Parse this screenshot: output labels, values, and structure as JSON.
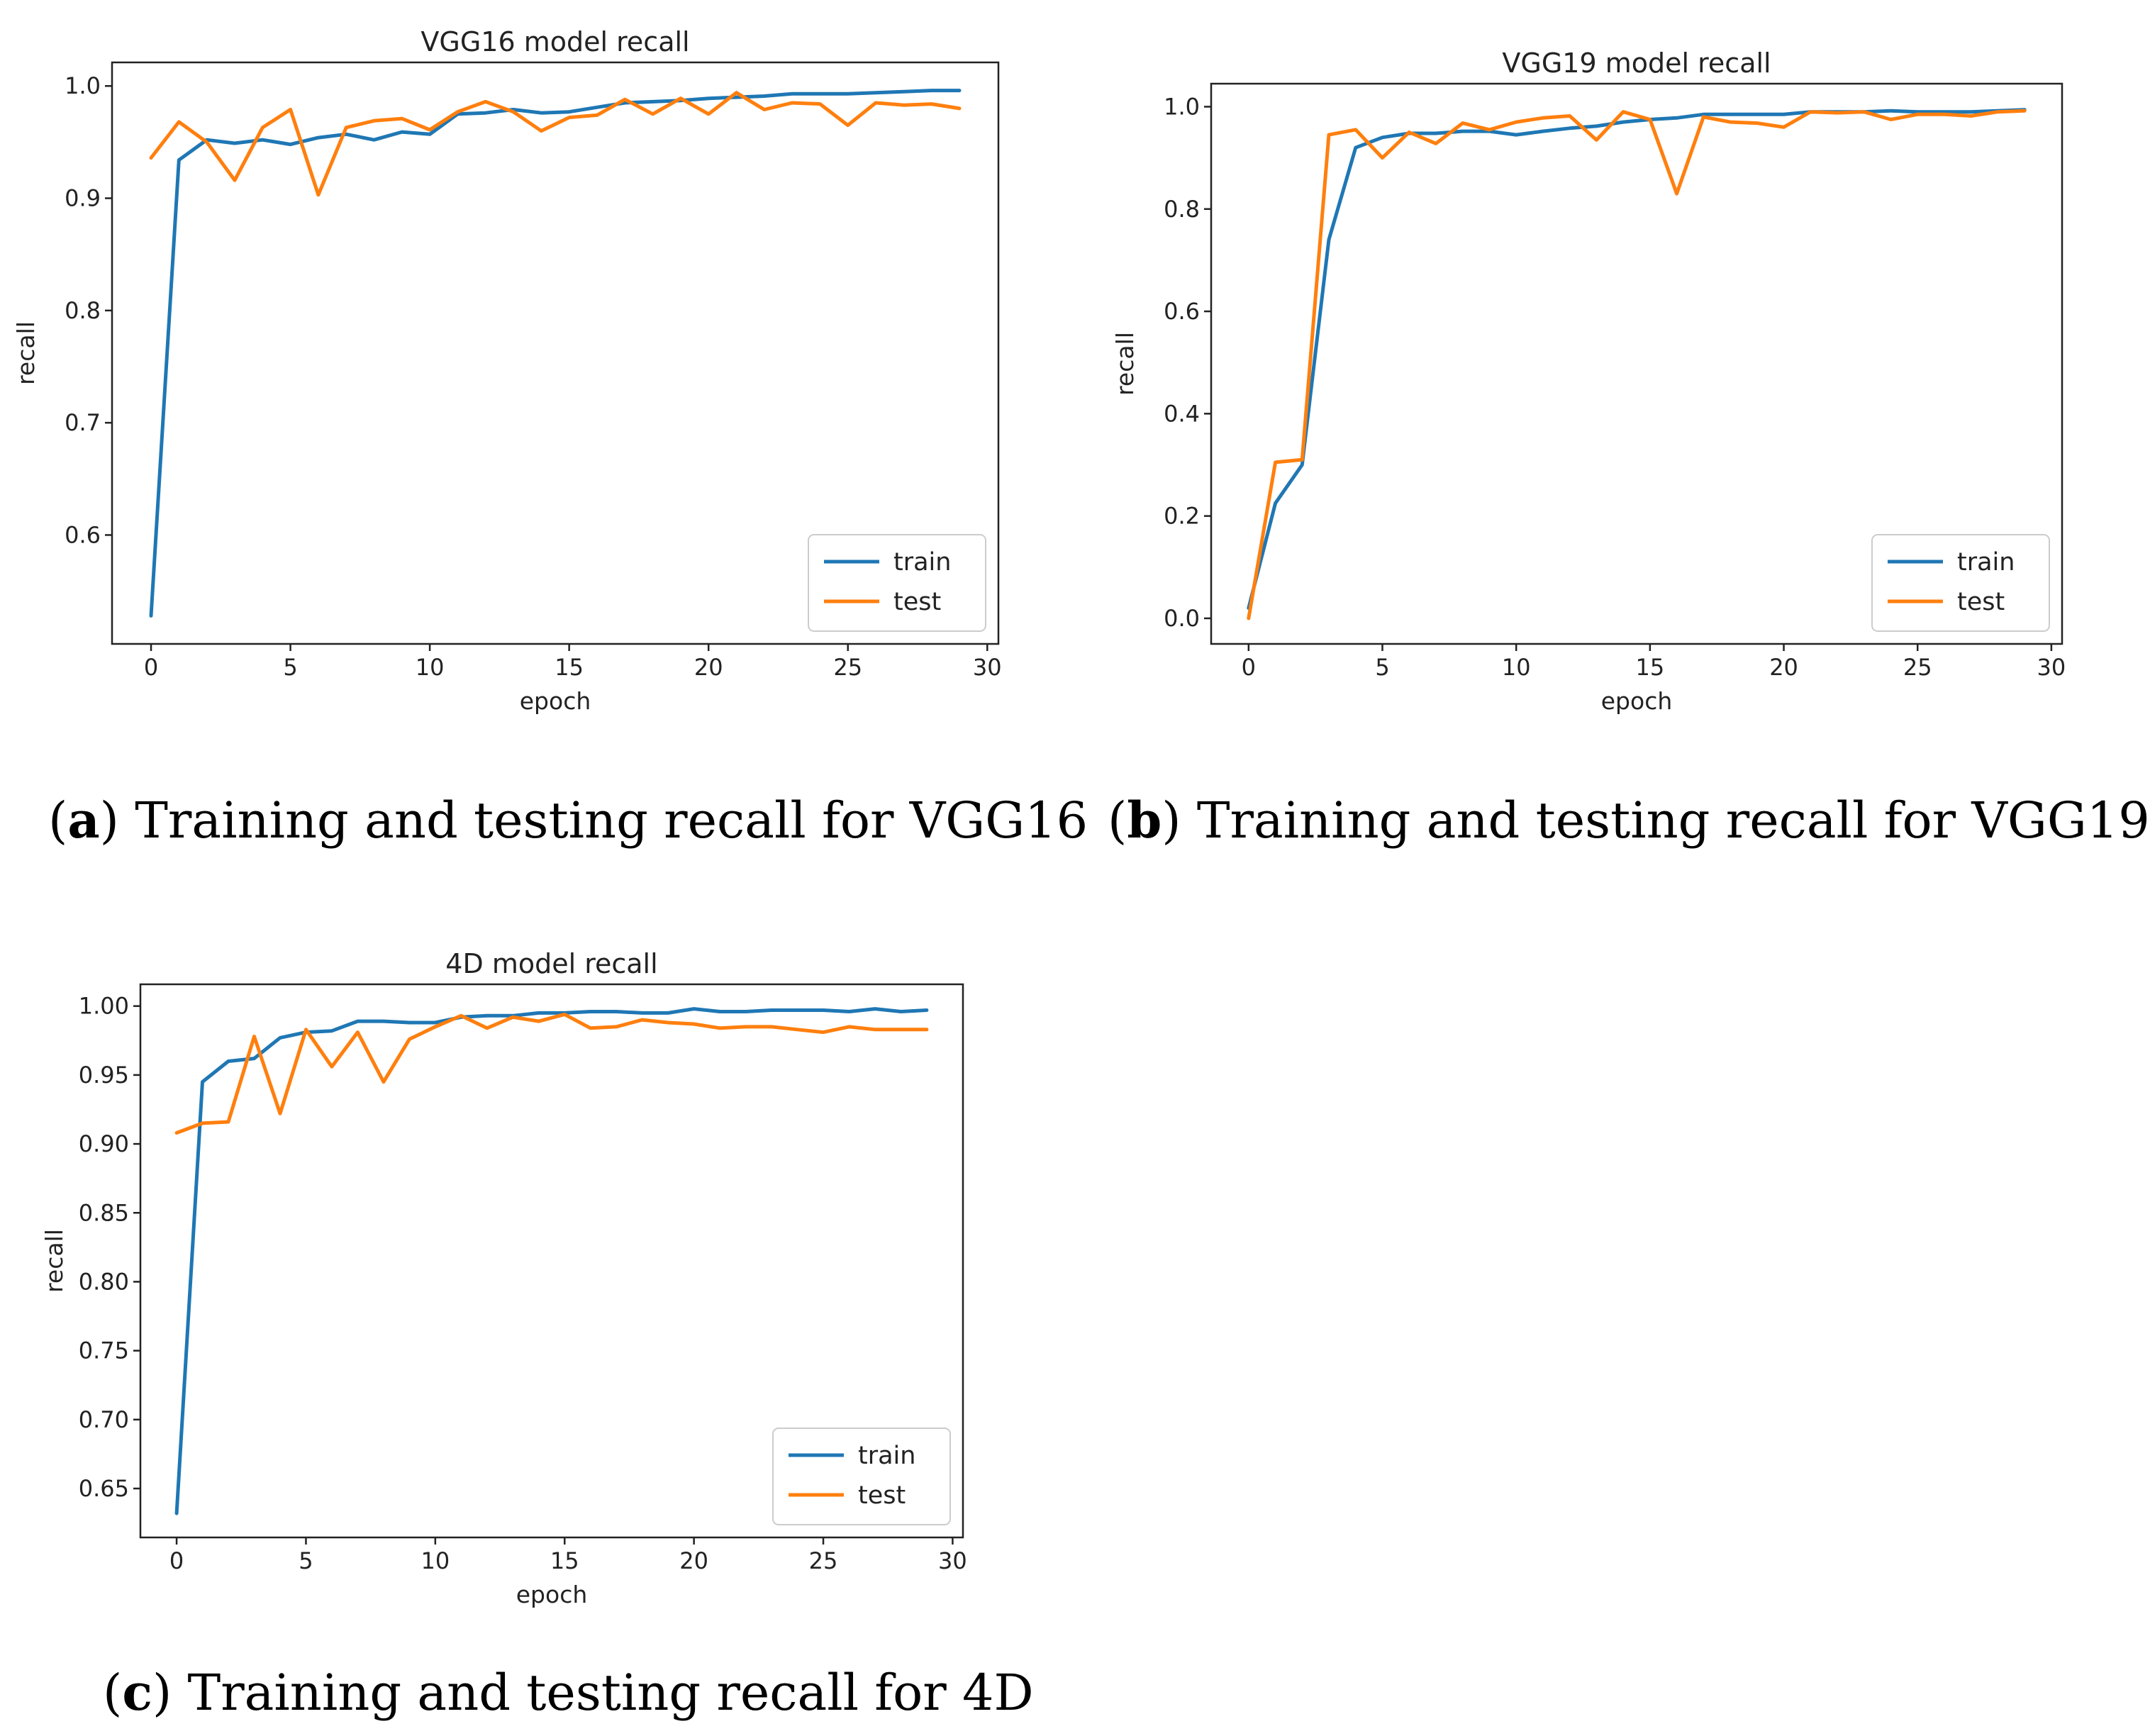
{
  "colors": {
    "train": "#1f77b4",
    "test": "#ff7f0e",
    "axis": "#222222",
    "legend_border": "#cccccc"
  },
  "captions": [
    {
      "label": "a",
      "text": " Training and testing recall for VGG16"
    },
    {
      "label": "b",
      "text": " Training and testing recall for VGG19"
    },
    {
      "label": "c",
      "text": " Training and testing recall for 4D"
    }
  ],
  "chart_data": [
    {
      "type": "line",
      "title": "VGG16 model recall",
      "xlabel": "epoch",
      "ylabel": "recall",
      "xlim": [
        -1.4,
        30.4
      ],
      "ylim": [
        0.503,
        1.021
      ],
      "xticks": [
        0,
        5,
        10,
        15,
        20,
        25,
        30
      ],
      "xtick_labels": [
        "0",
        "5",
        "10",
        "15",
        "20",
        "25",
        "30"
      ],
      "yticks": [
        0.6,
        0.7,
        0.8,
        0.9,
        1.0
      ],
      "ytick_labels": [
        "0.6",
        "0.7",
        "0.8",
        "0.9",
        "1.0"
      ],
      "legend": {
        "placement": "lower right",
        "entries": [
          "train",
          "test"
        ]
      },
      "x": [
        0,
        1,
        2,
        3,
        4,
        5,
        6,
        7,
        8,
        9,
        10,
        11,
        12,
        13,
        14,
        15,
        16,
        17,
        18,
        19,
        20,
        21,
        22,
        23,
        24,
        25,
        26,
        27,
        28,
        29
      ],
      "series": [
        {
          "name": "train",
          "values": [
            0.528,
            0.934,
            0.952,
            0.949,
            0.952,
            0.948,
            0.954,
            0.957,
            0.952,
            0.959,
            0.957,
            0.975,
            0.976,
            0.979,
            0.976,
            0.977,
            0.981,
            0.985,
            0.986,
            0.987,
            0.989,
            0.99,
            0.991,
            0.993,
            0.993,
            0.993,
            0.994,
            0.995,
            0.996,
            0.996
          ]
        },
        {
          "name": "test",
          "values": [
            0.936,
            0.968,
            0.95,
            0.916,
            0.963,
            0.979,
            0.903,
            0.963,
            0.969,
            0.971,
            0.961,
            0.977,
            0.986,
            0.977,
            0.96,
            0.972,
            0.974,
            0.988,
            0.975,
            0.989,
            0.975,
            0.994,
            0.979,
            0.985,
            0.984,
            0.965,
            0.985,
            0.983,
            0.984,
            0.98
          ]
        }
      ]
    },
    {
      "type": "line",
      "title": "VGG19 model recall",
      "xlabel": "epoch",
      "ylabel": "recall",
      "xlim": [
        -1.4,
        30.4
      ],
      "ylim": [
        -0.05,
        1.045
      ],
      "xticks": [
        0,
        5,
        10,
        15,
        20,
        25,
        30
      ],
      "xtick_labels": [
        "0",
        "5",
        "10",
        "15",
        "20",
        "25",
        "30"
      ],
      "yticks": [
        0.0,
        0.2,
        0.4,
        0.6,
        0.8,
        1.0
      ],
      "ytick_labels": [
        "0.0",
        "0.2",
        "0.4",
        "0.6",
        "0.8",
        "1.0"
      ],
      "legend": {
        "placement": "lower right",
        "entries": [
          "train",
          "test"
        ]
      },
      "x": [
        0,
        1,
        2,
        3,
        4,
        5,
        6,
        7,
        8,
        9,
        10,
        11,
        12,
        13,
        14,
        15,
        16,
        17,
        18,
        19,
        20,
        21,
        22,
        23,
        24,
        25,
        26,
        27,
        28,
        29
      ],
      "series": [
        {
          "name": "train",
          "values": [
            0.02,
            0.225,
            0.3,
            0.74,
            0.92,
            0.94,
            0.948,
            0.948,
            0.952,
            0.952,
            0.945,
            0.952,
            0.958,
            0.962,
            0.97,
            0.975,
            0.978,
            0.985,
            0.985,
            0.985,
            0.985,
            0.99,
            0.99,
            0.99,
            0.992,
            0.99,
            0.99,
            0.99,
            0.992,
            0.994
          ]
        },
        {
          "name": "test",
          "values": [
            0.0,
            0.305,
            0.31,
            0.945,
            0.955,
            0.9,
            0.95,
            0.928,
            0.968,
            0.955,
            0.97,
            0.978,
            0.982,
            0.935,
            0.99,
            0.975,
            0.83,
            0.98,
            0.97,
            0.968,
            0.96,
            0.99,
            0.988,
            0.99,
            0.975,
            0.985,
            0.985,
            0.982,
            0.99,
            0.992
          ]
        }
      ]
    },
    {
      "type": "line",
      "title": "4D model recall",
      "xlabel": "epoch",
      "ylabel": "recall",
      "xlim": [
        -1.4,
        30.4
      ],
      "ylim": [
        0.6145,
        1.0158
      ],
      "xticks": [
        0,
        5,
        10,
        15,
        20,
        25,
        30
      ],
      "xtick_labels": [
        "0",
        "5",
        "10",
        "15",
        "20",
        "25",
        "30"
      ],
      "yticks": [
        0.65,
        0.7,
        0.75,
        0.8,
        0.85,
        0.9,
        0.95,
        1.0
      ],
      "ytick_labels": [
        "0.65",
        "0.70",
        "0.75",
        "0.80",
        "0.85",
        "0.90",
        "0.95",
        "1.00"
      ],
      "legend": {
        "placement": "lower right",
        "entries": [
          "train",
          "test"
        ]
      },
      "x": [
        0,
        1,
        2,
        3,
        4,
        5,
        6,
        7,
        8,
        9,
        10,
        11,
        12,
        13,
        14,
        15,
        16,
        17,
        18,
        19,
        20,
        21,
        22,
        23,
        24,
        25,
        26,
        27,
        28,
        29
      ],
      "series": [
        {
          "name": "train",
          "values": [
            0.632,
            0.945,
            0.96,
            0.962,
            0.977,
            0.981,
            0.982,
            0.989,
            0.989,
            0.988,
            0.988,
            0.992,
            0.993,
            0.993,
            0.995,
            0.995,
            0.996,
            0.996,
            0.995,
            0.995,
            0.998,
            0.996,
            0.996,
            0.997,
            0.997,
            0.997,
            0.996,
            0.998,
            0.996,
            0.997
          ]
        },
        {
          "name": "test",
          "values": [
            0.908,
            0.915,
            0.916,
            0.978,
            0.922,
            0.983,
            0.956,
            0.981,
            0.945,
            0.976,
            0.985,
            0.993,
            0.984,
            0.992,
            0.989,
            0.994,
            0.984,
            0.985,
            0.99,
            0.988,
            0.987,
            0.984,
            0.985,
            0.985,
            0.983,
            0.981,
            0.985,
            0.983,
            0.983,
            0.983
          ]
        }
      ]
    }
  ]
}
